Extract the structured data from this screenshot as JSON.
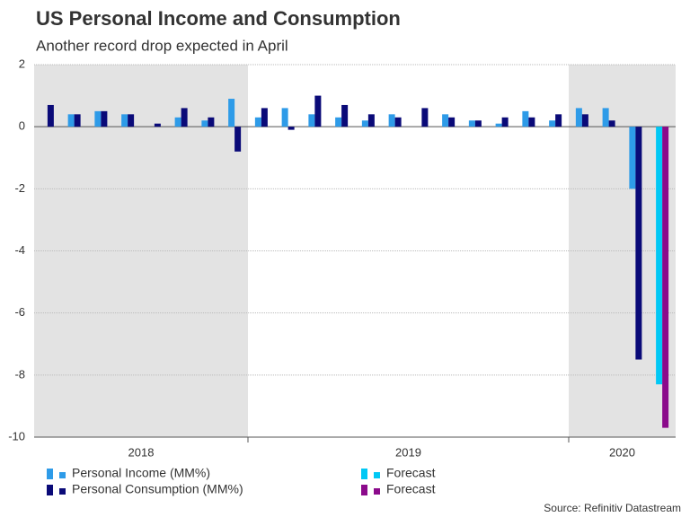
{
  "chart_data": {
    "type": "bar",
    "title": "US Personal Income and Consumption",
    "subtitle": "Another record drop expected in April",
    "source": "Source: Refinitiv Datastream",
    "categories": [
      "2018",
      "2018",
      "2018",
      "2018",
      "2018",
      "2018",
      "2018",
      "2018",
      "2019",
      "2019",
      "2019",
      "2019",
      "2019",
      "2019",
      "2019",
      "2019",
      "2019",
      "2019",
      "2019",
      "2019",
      "2020",
      "2020",
      "2020",
      "2020"
    ],
    "shaded": [
      "2018",
      "2020"
    ],
    "series": [
      {
        "name": "Personal Income (MM%)",
        "color": "#2e9be8",
        "values": [
          null,
          0.4,
          0.5,
          0.4,
          0.0,
          0.3,
          0.2,
          0.9,
          0.3,
          0.6,
          0.4,
          0.3,
          0.2,
          0.4,
          0.0,
          0.4,
          0.2,
          0.1,
          0.5,
          0.2,
          0.6,
          0.6,
          -2.0,
          null
        ]
      },
      {
        "name": "Personal Consumption (MM%)",
        "color": "#0a0a78",
        "values": [
          0.7,
          0.4,
          0.5,
          0.4,
          0.1,
          0.6,
          0.3,
          -0.8,
          0.6,
          -0.1,
          1.0,
          0.7,
          0.4,
          0.3,
          0.6,
          0.3,
          0.2,
          0.3,
          0.3,
          0.4,
          0.4,
          0.2,
          -7.5,
          null
        ]
      },
      {
        "name": "Forecast",
        "color": "#00c8f5",
        "values": [
          null,
          null,
          null,
          null,
          null,
          null,
          null,
          null,
          null,
          null,
          null,
          null,
          null,
          null,
          null,
          null,
          null,
          null,
          null,
          null,
          null,
          null,
          null,
          -8.3
        ]
      },
      {
        "name": "Forecast",
        "color": "#8b0a8b",
        "values": [
          null,
          null,
          null,
          null,
          null,
          null,
          null,
          null,
          null,
          null,
          null,
          null,
          null,
          null,
          null,
          null,
          null,
          null,
          null,
          null,
          null,
          null,
          null,
          -9.7
        ]
      }
    ],
    "ylim": [
      -10,
      2
    ],
    "yticks": [
      -10,
      -8,
      -6,
      -4,
      -2,
      0,
      2
    ],
    "grid": true
  }
}
